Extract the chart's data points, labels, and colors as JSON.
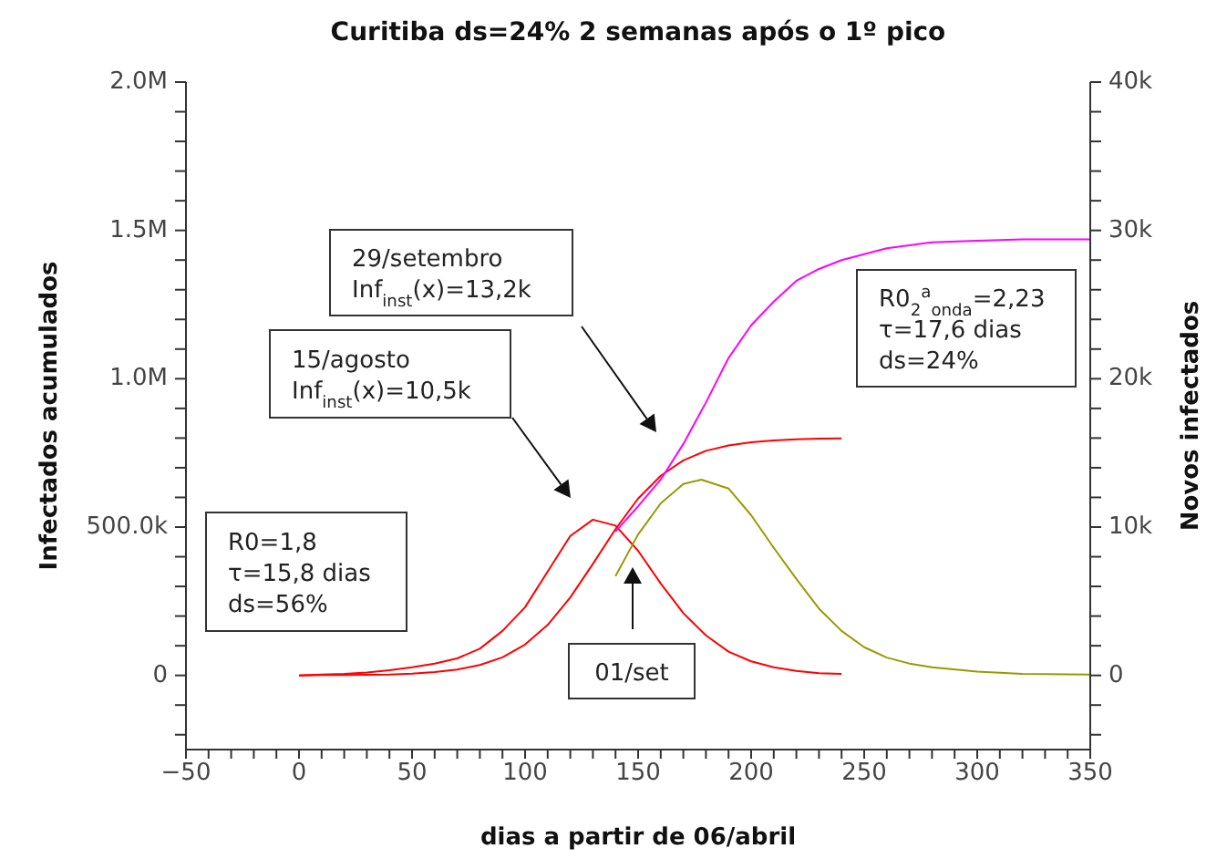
{
  "chart_data": {
    "type": "line",
    "title": "Curitiba ds=24% 2 semanas após o 1º pico",
    "xlabel": "dias a partir de 06/abril",
    "ylabel": "Infectados acumulados",
    "y2label": "Novos infectados",
    "xlim": [
      -50,
      350
    ],
    "xticks": [
      {
        "value": -50,
        "label": "−50"
      },
      {
        "value": -40,
        "label": null
      },
      {
        "value": -30,
        "label": null
      },
      {
        "value": -20,
        "label": null
      },
      {
        "value": -10,
        "label": null
      },
      0,
      {
        "value": 10,
        "label": null
      },
      {
        "value": 20,
        "label": null
      },
      {
        "value": 30,
        "label": null
      },
      {
        "value": 40,
        "label": null
      },
      50,
      {
        "value": 60,
        "label": null
      },
      {
        "value": 70,
        "label": null
      },
      {
        "value": 80,
        "label": null
      },
      {
        "value": 90,
        "label": null
      },
      100,
      {
        "value": 110,
        "label": null
      },
      {
        "value": 120,
        "label": null
      },
      {
        "value": 130,
        "label": null
      },
      {
        "value": 140,
        "label": null
      },
      150,
      {
        "value": 160,
        "label": null
      },
      {
        "value": 170,
        "label": null
      },
      {
        "value": 180,
        "label": null
      },
      {
        "value": 190,
        "label": null
      },
      200,
      {
        "value": 210,
        "label": null
      },
      {
        "value": 220,
        "label": null
      },
      {
        "value": 230,
        "label": null
      },
      {
        "value": 240,
        "label": null
      },
      250,
      {
        "value": 260,
        "label": null
      },
      {
        "value": 270,
        "label": null
      },
      {
        "value": 280,
        "label": null
      },
      {
        "value": 290,
        "label": null
      },
      300,
      {
        "value": 310,
        "label": null
      },
      {
        "value": 320,
        "label": null
      },
      {
        "value": 330,
        "label": null
      },
      {
        "value": 340,
        "label": null
      },
      350
    ],
    "ylim": [
      -250000,
      2000000
    ],
    "yticks": [
      {
        "value": -200000,
        "label": null
      },
      {
        "value": -100000,
        "label": null
      },
      {
        "value": 0,
        "label": "0"
      },
      {
        "value": 100000,
        "label": null
      },
      {
        "value": 200000,
        "label": null
      },
      {
        "value": 300000,
        "label": null
      },
      {
        "value": 400000,
        "label": null
      },
      {
        "value": 500000,
        "label": "500.0k"
      },
      {
        "value": 600000,
        "label": null
      },
      {
        "value": 700000,
        "label": null
      },
      {
        "value": 800000,
        "label": null
      },
      {
        "value": 900000,
        "label": null
      },
      {
        "value": 1000000,
        "label": "1.0M"
      },
      {
        "value": 1100000,
        "label": null
      },
      {
        "value": 1200000,
        "label": null
      },
      {
        "value": 1300000,
        "label": null
      },
      {
        "value": 1400000,
        "label": null
      },
      {
        "value": 1500000,
        "label": "1.5M"
      },
      {
        "value": 1600000,
        "label": null
      },
      {
        "value": 1700000,
        "label": null
      },
      {
        "value": 1800000,
        "label": null
      },
      {
        "value": 1900000,
        "label": null
      },
      {
        "value": 2000000,
        "label": "2.0M"
      }
    ],
    "y2lim": [
      -5000,
      40000
    ],
    "y2ticks": [
      {
        "value": -4000,
        "label": null
      },
      {
        "value": -2000,
        "label": null
      },
      {
        "value": 0,
        "label": "0"
      },
      {
        "value": 2000,
        "label": null
      },
      {
        "value": 4000,
        "label": null
      },
      {
        "value": 6000,
        "label": null
      },
      {
        "value": 8000,
        "label": null
      },
      {
        "value": 10000,
        "label": "10k"
      },
      {
        "value": 12000,
        "label": null
      },
      {
        "value": 14000,
        "label": null
      },
      {
        "value": 16000,
        "label": null
      },
      {
        "value": 18000,
        "label": null
      },
      {
        "value": 20000,
        "label": "20k"
      },
      {
        "value": 22000,
        "label": null
      },
      {
        "value": 24000,
        "label": null
      },
      {
        "value": 26000,
        "label": null
      },
      {
        "value": 28000,
        "label": null
      },
      {
        "value": 30000,
        "label": "30k"
      },
      {
        "value": 32000,
        "label": null
      },
      {
        "value": 34000,
        "label": null
      },
      {
        "value": 36000,
        "label": null
      },
      {
        "value": 38000,
        "label": null
      },
      {
        "value": 40000,
        "label": "40k"
      }
    ],
    "series": [
      {
        "color": "#ff0000",
        "x": [
          0,
          10,
          20,
          30,
          40,
          50,
          60,
          70,
          80,
          90,
          100,
          110,
          120,
          130,
          140,
          150,
          160,
          170,
          180,
          190,
          200,
          210,
          220,
          230,
          240
        ],
        "values": [
          0,
          1000,
          1000,
          2000,
          3000,
          6000,
          11000,
          20000,
          35000,
          61000,
          104000,
          170000,
          263000,
          376000,
          493000,
          596000,
          673000,
          725000,
          757000,
          775000,
          786000,
          792000,
          796000,
          798000,
          799000
        ]
      },
      {
        "color": "#ff0000",
        "axis": "y2",
        "x": [
          0,
          10,
          20,
          30,
          40,
          50,
          60,
          70,
          80,
          90,
          100,
          110,
          120,
          130,
          140,
          150,
          160,
          170,
          180,
          190,
          200,
          210,
          220,
          230,
          240
        ],
        "values": [
          0,
          50,
          100,
          200,
          350,
          550,
          800,
          1150,
          1800,
          3000,
          4600,
          7000,
          9400,
          10500,
          10100,
          8400,
          6200,
          4200,
          2700,
          1600,
          950,
          550,
          300,
          150,
          100
        ]
      },
      {
        "color": "#ff00ff",
        "x": [
          140,
          150,
          160,
          170,
          180,
          190,
          200,
          210,
          220,
          230,
          240,
          250,
          260,
          270,
          280,
          300,
          320,
          350
        ],
        "values": [
          485000,
          570000,
          660000,
          780000,
          920000,
          1070000,
          1180000,
          1260000,
          1330000,
          1370000,
          1400000,
          1420000,
          1440000,
          1450000,
          1460000,
          1465000,
          1470000,
          1470000
        ]
      },
      {
        "color": "#999900",
        "axis": "y2",
        "x": [
          140,
          150,
          160,
          170,
          178,
          190,
          200,
          210,
          220,
          230,
          240,
          250,
          260,
          270,
          280,
          300,
          320,
          350
        ],
        "values": [
          6700,
          9500,
          11600,
          12900,
          13200,
          12600,
          10800,
          8600,
          6500,
          4500,
          3000,
          1900,
          1200,
          800,
          550,
          250,
          100,
          50
        ]
      }
    ],
    "annotations": [
      "R0=1,8\nτ=15,8 dias\nds=56%",
      "15/agosto\nInf$_{inst}$(x)=10,5k",
      "29/setembro\nInf$_{inst}$(x)=13,2k",
      "R0$_{2}$$^{a}$$_{onda}$=2,23\nτ=17,6 dias\nds=24%",
      "01/set"
    ]
  }
}
